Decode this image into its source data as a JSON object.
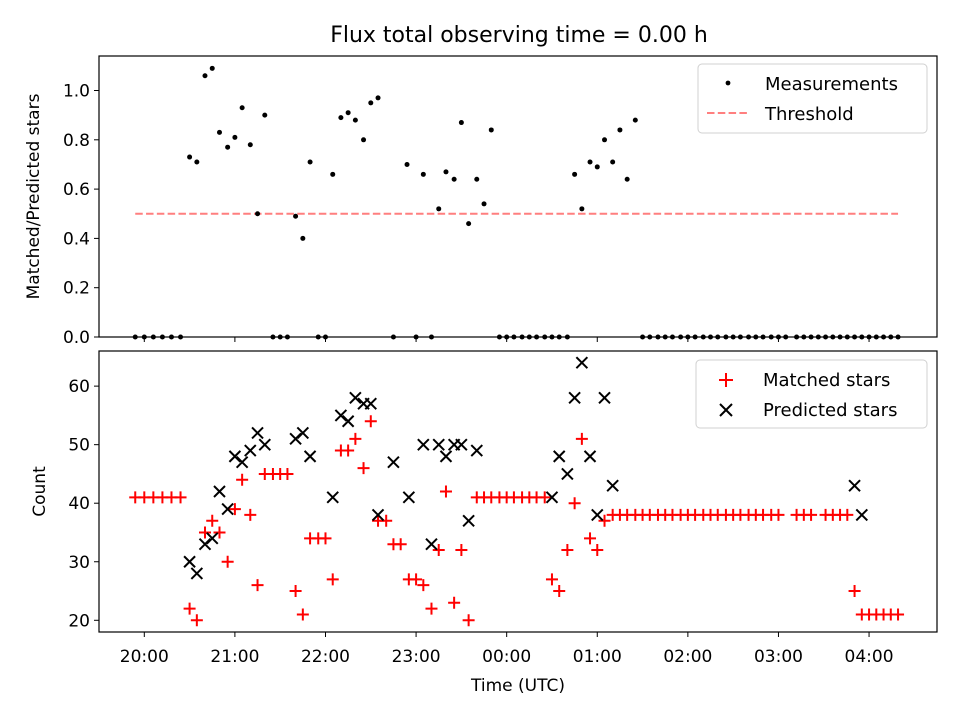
{
  "title": "Flux total observing time = 0.00 h",
  "chart_data": [
    {
      "type": "scatter",
      "ylabel": "Matched/Predicted stars",
      "ylim": [
        0,
        1.14
      ],
      "yticks": [
        0.0,
        0.2,
        0.4,
        0.6,
        0.8,
        1.0
      ],
      "ytick_labels": [
        "0.0",
        "0.2",
        "0.4",
        "0.6",
        "0.8",
        "1.0"
      ],
      "x_unit": "hours since 20:00 UTC",
      "xlim": [
        -0.5,
        8.75
      ],
      "legend_position": "top-right",
      "series": [
        {
          "name": "Measurements",
          "marker": "dot",
          "color": "#000000",
          "x": [
            -0.1,
            0.0,
            0.1,
            0.2,
            0.3,
            0.4,
            0.5,
            0.58,
            0.67,
            0.75,
            0.83,
            0.92,
            1.0,
            1.08,
            1.17,
            1.25,
            1.33,
            1.42,
            1.5,
            1.58,
            1.67,
            1.75,
            1.83,
            1.92,
            2.0,
            2.08,
            2.17,
            2.25,
            2.33,
            2.42,
            2.5,
            2.58,
            2.75,
            2.9,
            3.0,
            3.08,
            3.17,
            3.25,
            3.33,
            3.42,
            3.5,
            3.58,
            3.67,
            3.75,
            3.83,
            3.92,
            4.0,
            4.08,
            4.17,
            4.25,
            4.33,
            4.42,
            4.5,
            4.58,
            4.67,
            4.75,
            4.83,
            4.92,
            5.0,
            5.08,
            5.17,
            5.25,
            5.33,
            5.42,
            5.5,
            5.58,
            5.67,
            5.75,
            5.83,
            5.92,
            6.0,
            6.08,
            6.17,
            6.25,
            6.33,
            6.42,
            6.5,
            6.58,
            6.67,
            6.75,
            6.83,
            6.92,
            7.0,
            7.08,
            7.2,
            7.28,
            7.36,
            7.44,
            7.52,
            7.6,
            7.68,
            7.76,
            7.84,
            7.92,
            8.0,
            8.08,
            8.16,
            8.24,
            8.32
          ],
          "y": [
            0,
            0,
            0,
            0,
            0,
            0,
            0.73,
            0.71,
            1.06,
            1.09,
            0.83,
            0.77,
            0.81,
            0.93,
            0.78,
            0.5,
            0.9,
            0,
            0,
            0,
            0.49,
            0.4,
            0.71,
            0,
            0,
            0.66,
            0.89,
            0.91,
            0.88,
            0.8,
            0.95,
            0.97,
            0,
            0.7,
            0,
            0.66,
            0,
            0.52,
            0.67,
            0.64,
            0.87,
            0.46,
            0.64,
            0.54,
            0.84,
            0,
            0,
            0,
            0,
            0,
            0,
            0,
            0,
            0,
            0,
            0.66,
            0.52,
            0.71,
            0.69,
            0.8,
            0.71,
            0.84,
            0.64,
            0.88,
            0,
            0,
            0,
            0,
            0,
            0,
            0,
            0,
            0,
            0,
            0,
            0,
            0,
            0,
            0,
            0,
            0,
            0,
            0,
            0,
            0,
            0,
            0,
            0,
            0,
            0,
            0,
            0,
            0,
            0,
            0,
            0,
            0,
            0,
            0
          ]
        },
        {
          "name": "Threshold",
          "type": "line",
          "style": "dashed",
          "color": "#ff7f7f",
          "x": [
            -0.1,
            8.32
          ],
          "y": [
            0.5,
            0.5
          ]
        }
      ]
    },
    {
      "type": "scatter",
      "xlabel": "Time (UTC)",
      "ylabel": "Count",
      "ylim": [
        18,
        66
      ],
      "yticks": [
        20,
        30,
        40,
        50,
        60
      ],
      "ytick_labels": [
        "20",
        "30",
        "40",
        "50",
        "60"
      ],
      "x_unit": "hours since 20:00 UTC",
      "xlim": [
        -0.5,
        8.75
      ],
      "xticks": [
        0,
        1,
        2,
        3,
        4,
        5,
        6,
        7,
        8
      ],
      "xtick_labels": [
        "20:00",
        "21:00",
        "22:00",
        "23:00",
        "00:00",
        "01:00",
        "02:00",
        "03:00",
        "04:00"
      ],
      "legend_position": "top-right",
      "series": [
        {
          "name": "Matched stars",
          "marker": "plus",
          "color": "#ff0000",
          "x": [
            -0.1,
            0.0,
            0.1,
            0.2,
            0.3,
            0.4,
            0.5,
            0.58,
            0.67,
            0.75,
            0.83,
            0.92,
            1.0,
            1.08,
            1.17,
            1.25,
            1.33,
            1.42,
            1.5,
            1.58,
            1.67,
            1.75,
            1.83,
            1.92,
            2.0,
            2.08,
            2.17,
            2.25,
            2.33,
            2.42,
            2.5,
            2.58,
            2.67,
            2.75,
            2.83,
            2.92,
            3.0,
            3.08,
            3.17,
            3.25,
            3.33,
            3.42,
            3.5,
            3.58,
            3.67,
            3.75,
            3.83,
            3.92,
            4.0,
            4.08,
            4.17,
            4.25,
            4.33,
            4.42,
            4.5,
            4.58,
            4.67,
            4.75,
            4.83,
            4.92,
            5.0,
            5.08,
            5.17,
            5.25,
            5.33,
            5.42,
            5.5,
            5.58,
            5.67,
            5.75,
            5.83,
            5.92,
            6.0,
            6.08,
            6.17,
            6.25,
            6.33,
            6.42,
            6.5,
            6.58,
            6.67,
            6.75,
            6.83,
            6.92,
            7.0,
            7.2,
            7.28,
            7.36,
            7.52,
            7.6,
            7.68,
            7.76,
            7.84,
            7.92,
            8.0,
            8.08,
            8.16,
            8.24,
            8.32
          ],
          "y": [
            41,
            41,
            41,
            41,
            41,
            41,
            22,
            20,
            35,
            37,
            35,
            30,
            39,
            44,
            38,
            26,
            45,
            45,
            45,
            45,
            25,
            21,
            34,
            34,
            34,
            27,
            49,
            49,
            51,
            46,
            54,
            37,
            37,
            33,
            33,
            27,
            27,
            26,
            22,
            32,
            42,
            23,
            32,
            20,
            41,
            41,
            41,
            41,
            41,
            41,
            41,
            41,
            41,
            41,
            27,
            25,
            32,
            40,
            51,
            34,
            32,
            37,
            38,
            38,
            38,
            38,
            38,
            38,
            38,
            38,
            38,
            38,
            38,
            38,
            38,
            38,
            38,
            38,
            38,
            38,
            38,
            38,
            38,
            38,
            38,
            38,
            38,
            38,
            38,
            38,
            38,
            38,
            25,
            21,
            21,
            21,
            21,
            21,
            21
          ]
        },
        {
          "name": "Predicted stars",
          "marker": "x",
          "color": "#000000",
          "x": [
            0.5,
            0.58,
            0.67,
            0.75,
            0.83,
            0.92,
            1.0,
            1.08,
            1.17,
            1.25,
            1.33,
            1.67,
            1.75,
            1.83,
            2.08,
            2.17,
            2.25,
            2.33,
            2.42,
            2.5,
            2.58,
            2.75,
            2.92,
            3.08,
            3.17,
            3.25,
            3.33,
            3.42,
            3.5,
            3.58,
            3.67,
            4.5,
            4.58,
            4.67,
            4.75,
            4.83,
            4.92,
            5.0,
            5.08,
            5.17,
            7.84,
            7.92
          ],
          "y": [
            30,
            28,
            33,
            34,
            42,
            39,
            48,
            47,
            49,
            52,
            50,
            51,
            52,
            48,
            41,
            55,
            54,
            58,
            57,
            57,
            38,
            47,
            41,
            50,
            33,
            50,
            48,
            50,
            50,
            37,
            49,
            41,
            48,
            45,
            58,
            64,
            48,
            38,
            58,
            43,
            43,
            38
          ]
        }
      ]
    }
  ]
}
